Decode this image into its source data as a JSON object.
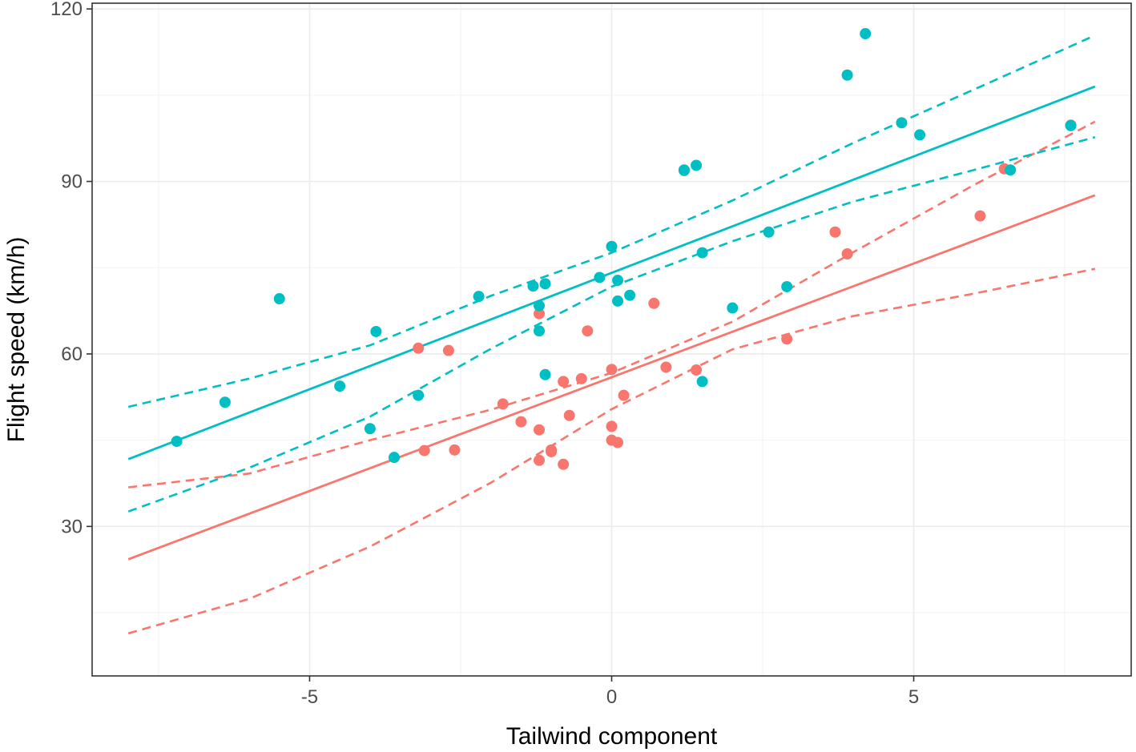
{
  "chart_data": {
    "type": "scatter",
    "title": "",
    "xlabel": "Tailwind component",
    "ylabel": "Flight speed (km/h)",
    "xlim": [
      -8.6,
      8.6
    ],
    "ylim": [
      4,
      121
    ],
    "x_ticks": [
      -5,
      0,
      5
    ],
    "y_ticks": [
      30,
      60,
      90,
      120
    ],
    "x_tick_labels": [
      "-5",
      "0",
      "5"
    ],
    "y_tick_labels": [
      "30",
      "60",
      "90",
      "120"
    ],
    "grid": true,
    "legend": "none",
    "series": [
      {
        "color": "#F8766D",
        "points": [
          [
            -3.2,
            61.0
          ],
          [
            -3.1,
            43.2
          ],
          [
            -2.7,
            60.6
          ],
          [
            -2.6,
            43.3
          ],
          [
            -1.8,
            51.3
          ],
          [
            -1.5,
            48.2
          ],
          [
            -1.2,
            41.5
          ],
          [
            -1.2,
            67.0
          ],
          [
            -1.2,
            46.8
          ],
          [
            -1.0,
            43.3
          ],
          [
            -1.0,
            43.0
          ],
          [
            -0.8,
            55.2
          ],
          [
            -0.8,
            40.8
          ],
          [
            -0.7,
            49.3
          ],
          [
            -0.5,
            55.7
          ],
          [
            -0.4,
            64.0
          ],
          [
            0.0,
            45.0
          ],
          [
            0.0,
            57.3
          ],
          [
            0.0,
            47.4
          ],
          [
            0.1,
            44.6
          ],
          [
            0.2,
            52.8
          ],
          [
            0.7,
            68.8
          ],
          [
            0.9,
            57.7
          ],
          [
            1.4,
            57.2
          ],
          [
            2.9,
            62.6
          ],
          [
            3.7,
            81.2
          ],
          [
            3.9,
            77.4
          ],
          [
            6.1,
            84.0
          ],
          [
            6.5,
            92.2
          ],
          [
            7.6,
            99.8
          ]
        ],
        "fit": {
          "x": [
            -8,
            8
          ],
          "y": [
            24.3,
            87.6
          ]
        },
        "ci_lower": {
          "x": [
            -8,
            -6,
            -4,
            -2,
            0,
            2,
            4,
            6,
            8
          ],
          "y": [
            11.4,
            17.4,
            26.5,
            37.6,
            50.4,
            60.8,
            66.6,
            70.5,
            74.8
          ]
        },
        "ci_upper": {
          "x": [
            -8,
            -6,
            -4,
            -2,
            0,
            2,
            4,
            6,
            8
          ],
          "y": [
            36.8,
            39.2,
            45.0,
            50.3,
            56.7,
            65.6,
            77.7,
            89.4,
            100.4
          ]
        }
      },
      {
        "color": "#00BFC4",
        "points": [
          [
            -7.2,
            44.8
          ],
          [
            -6.4,
            51.6
          ],
          [
            -5.5,
            69.6
          ],
          [
            -4.5,
            54.4
          ],
          [
            -4.0,
            47.0
          ],
          [
            -3.9,
            63.9
          ],
          [
            -3.6,
            42.0
          ],
          [
            -3.2,
            52.8
          ],
          [
            -2.2,
            70.0
          ],
          [
            -1.3,
            71.8
          ],
          [
            -1.2,
            68.4
          ],
          [
            -1.2,
            64.0
          ],
          [
            -1.1,
            72.2
          ],
          [
            -1.1,
            56.4
          ],
          [
            -0.2,
            73.3
          ],
          [
            0.0,
            78.7
          ],
          [
            0.1,
            69.2
          ],
          [
            0.1,
            72.8
          ],
          [
            0.3,
            70.2
          ],
          [
            1.2,
            91.9
          ],
          [
            1.2,
            92.0
          ],
          [
            1.4,
            92.8
          ],
          [
            1.5,
            77.6
          ],
          [
            1.5,
            55.2
          ],
          [
            2.0,
            68.0
          ],
          [
            2.6,
            81.2
          ],
          [
            2.9,
            71.7
          ],
          [
            3.9,
            108.5
          ],
          [
            4.2,
            115.7
          ],
          [
            4.8,
            100.2
          ],
          [
            5.1,
            98.1
          ],
          [
            6.6,
            92.0
          ],
          [
            7.6,
            99.7
          ]
        ],
        "fit": {
          "x": [
            -8,
            8
          ],
          "y": [
            41.7,
            106.5
          ]
        },
        "ci_lower": {
          "x": [
            -8,
            -6,
            -4,
            -2,
            0,
            2,
            4,
            6,
            8
          ],
          "y": [
            32.6,
            40.2,
            49.1,
            60.9,
            71.7,
            79.6,
            86.5,
            92.0,
            97.7
          ]
        },
        "ci_upper": {
          "x": [
            -8,
            -6,
            -4,
            -2,
            0,
            2,
            4,
            6,
            8
          ],
          "y": [
            50.8,
            55.7,
            61.5,
            70.1,
            77.6,
            86.7,
            96.7,
            106.0,
            115.4
          ]
        }
      }
    ]
  }
}
